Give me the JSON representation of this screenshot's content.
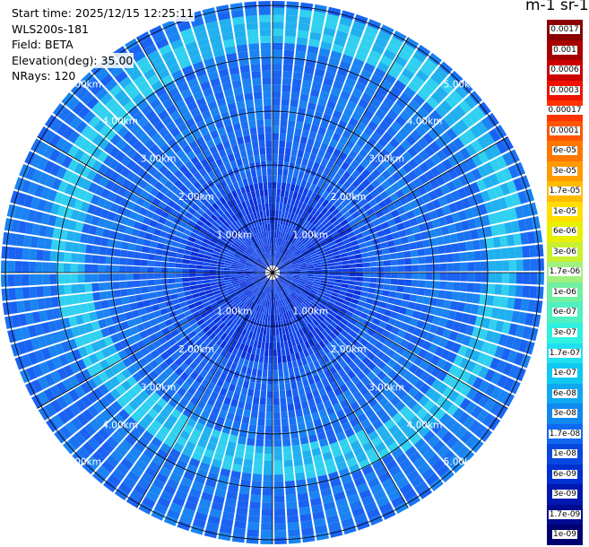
{
  "info": {
    "start_time": "Start time: 2025/12/15 12:25:11",
    "instrument": "WLS200s-181",
    "field": "Field: BETA",
    "elevation": "Elevation(deg): 35.00",
    "nrays": "NRays: 120"
  },
  "colorbar": {
    "unit_label": "m-1 sr-1",
    "labels": [
      "0.0017",
      "0.001",
      "0.0006",
      "0.0003",
      "0.00017",
      "0.0001",
      "6e-05",
      "3e-05",
      "1.7e-05",
      "1e-05",
      "6e-06",
      "3e-06",
      "1.7e-06",
      "1e-06",
      "6e-07",
      "3e-07",
      "1.7e-07",
      "1e-07",
      "6e-08",
      "3e-08",
      "1.7e-08",
      "1e-08",
      "6e-09",
      "3e-09",
      "1.7e-09",
      "1e-09"
    ],
    "colors": [
      "#8b0000",
      "#a60000",
      "#cc0000",
      "#ee1100",
      "#ff3300",
      "#ff5500",
      "#ff7700",
      "#ff9900",
      "#ffbb00",
      "#ffdd00",
      "#e8f000",
      "#c8f030",
      "#a0f080",
      "#70f0a0",
      "#50f0c0",
      "#30f0e0",
      "#20e0f0",
      "#10c8f0",
      "#10a8f0",
      "#1088f0",
      "#1068f0",
      "#0848e0",
      "#0030d0",
      "#0018b0",
      "#000c90",
      "#000070"
    ]
  },
  "range_labels": [
    "1.00km",
    "1.00km",
    "1.00km",
    "1.00km",
    "2.00km",
    "2.00km",
    "2.00km",
    "2.00km",
    "3.00km",
    "3.00km",
    "3.00km",
    "3.00km",
    "4.00km",
    "4.00km",
    "4.00km",
    "4.00km",
    "5.00km",
    "5.00km",
    "5.00km",
    "5.00km"
  ],
  "ppi": {
    "center": "#ffffff",
    "ring_colors": [
      "#1a3fe0",
      "#1a50ea",
      "#1a5cf0",
      "#1a70f0",
      "#1a80f0",
      "#1a90f0",
      "#20a0f0",
      "#1a88f0",
      "#1a78f0",
      "#1a6cf0"
    ]
  }
}
